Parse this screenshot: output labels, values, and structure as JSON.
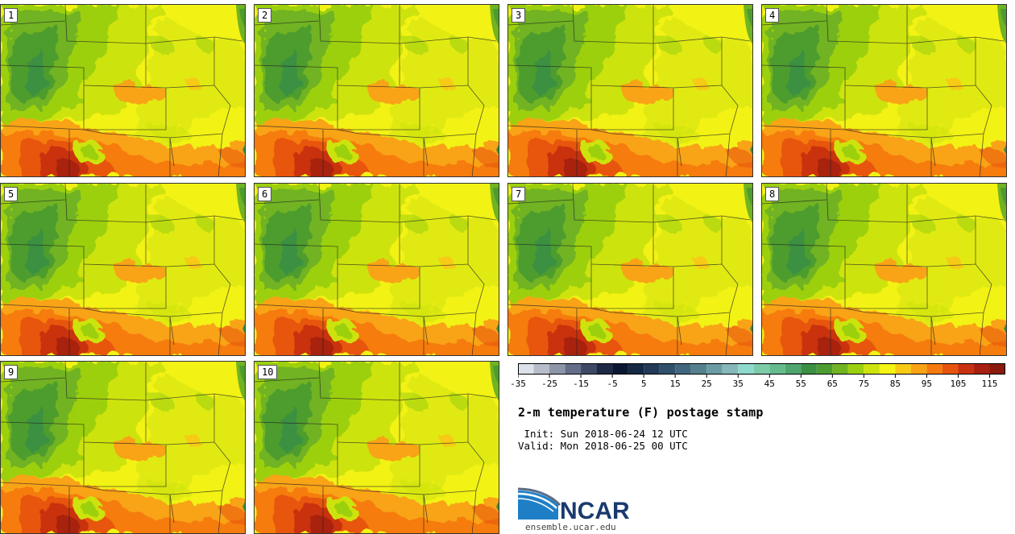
{
  "figure": {
    "title": "2-m temperature (F) postage stamp",
    "init_line": " Init: Sun 2018-06-24 12 UTC",
    "valid_line": "Valid: Mon 2018-06-25 00 UTC",
    "logo_text": "NCAR",
    "url": "ensemble.ucar.edu"
  },
  "members": [
    {
      "label": "1"
    },
    {
      "label": "2"
    },
    {
      "label": "3"
    },
    {
      "label": "4"
    },
    {
      "label": "5"
    },
    {
      "label": "6"
    },
    {
      "label": "7"
    },
    {
      "label": "8"
    },
    {
      "label": "9"
    },
    {
      "label": "10"
    }
  ],
  "colorbar": {
    "min": -35,
    "max": 120,
    "step": 5,
    "tick_labels": [
      "-35",
      "-25",
      "-15",
      "-5",
      "5",
      "15",
      "25",
      "35",
      "45",
      "55",
      "65",
      "75",
      "85",
      "95",
      "105",
      "115"
    ],
    "tick_values": [
      -35,
      -25,
      -15,
      -5,
      5,
      15,
      25,
      35,
      45,
      55,
      65,
      75,
      85,
      95,
      105,
      115
    ],
    "colors": [
      "#dde1e9",
      "#b7bdca",
      "#8d95a8",
      "#646e88",
      "#3e4966",
      "#1d2a47",
      "#0b1730",
      "#152844",
      "#223a58",
      "#30506c",
      "#41677e",
      "#55808e",
      "#6c9ca3",
      "#86b8ba",
      "#8fd9cd",
      "#7ccca8",
      "#65bb8c",
      "#4ea66f",
      "#3b9043",
      "#4d9c2f",
      "#71b321",
      "#9cd00e",
      "#cde30b",
      "#f5f515",
      "#f7ca14",
      "#f9a315",
      "#f57b10",
      "#e8540e",
      "#c93210",
      "#a8200f",
      "#8a1a0e"
    ]
  }
}
